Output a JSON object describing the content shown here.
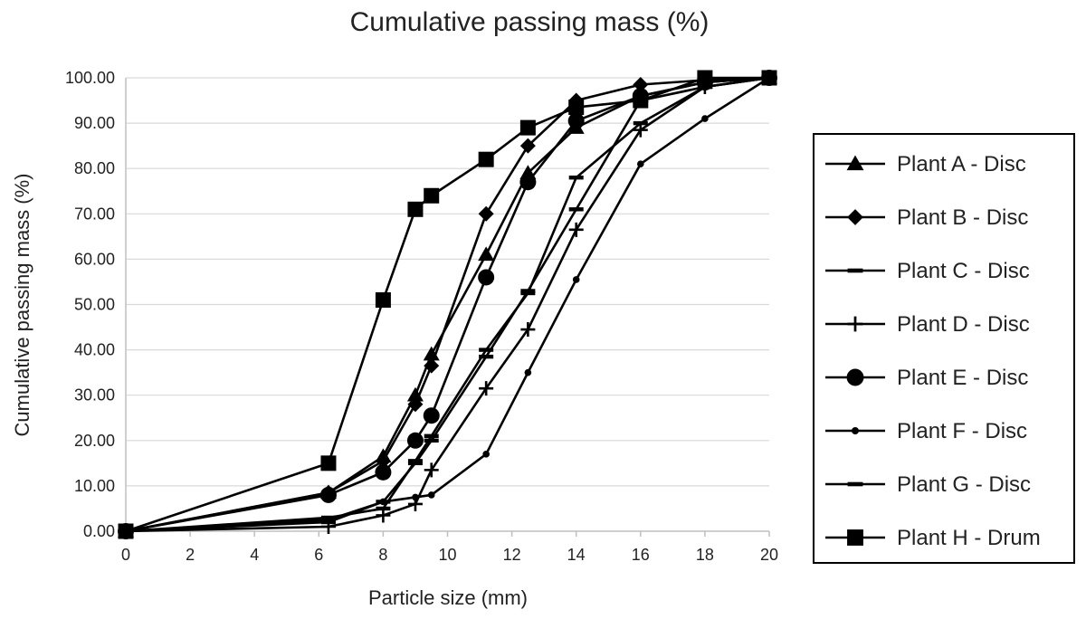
{
  "chart_data": {
    "type": "line",
    "title": "Cumulative passing mass (%)",
    "xlabel": "Particle size (mm)",
    "ylabel": "Cumulative passing mass (%)",
    "xlim": [
      0,
      20
    ],
    "ylim": [
      0,
      100
    ],
    "x_ticks": [
      "0",
      "2",
      "4",
      "6",
      "8",
      "10",
      "12",
      "14",
      "16",
      "18",
      "20"
    ],
    "y_ticks": [
      "0.00",
      "10.00",
      "20.00",
      "30.00",
      "40.00",
      "50.00",
      "60.00",
      "70.00",
      "80.00",
      "90.00",
      "100.00"
    ],
    "legend_position": "right",
    "series": [
      {
        "name": "Plant A - Disc",
        "marker": "triangle",
        "x": [
          0,
          6.3,
          8,
          9,
          9.5,
          11.2,
          12.5,
          14,
          16,
          18,
          20
        ],
        "y": [
          0,
          8.5,
          16.5,
          30,
          39,
          61,
          79,
          89,
          96,
          99,
          100
        ]
      },
      {
        "name": "Plant B - Disc",
        "marker": "diamond",
        "x": [
          0,
          6.3,
          8,
          9,
          9.5,
          11.2,
          12.5,
          14,
          16,
          18,
          20
        ],
        "y": [
          0,
          8.5,
          15.5,
          28,
          36.5,
          70,
          85,
          95,
          98.5,
          99.5,
          100
        ]
      },
      {
        "name": "Plant C - Disc",
        "marker": "dash",
        "x": [
          0,
          6.3,
          8,
          9,
          9.5,
          11.2,
          12.5,
          14,
          16,
          18,
          20
        ],
        "y": [
          0,
          3,
          5,
          15.5,
          21,
          40,
          52.5,
          78,
          90,
          98,
          100
        ]
      },
      {
        "name": "Plant D - Disc",
        "marker": "plus",
        "x": [
          0,
          6.3,
          8,
          9,
          9.5,
          11.2,
          12.5,
          14,
          16,
          18,
          20
        ],
        "y": [
          0,
          1,
          3.5,
          6,
          13.5,
          31.5,
          44.5,
          66.5,
          88.5,
          98,
          100
        ]
      },
      {
        "name": "Plant E - Disc",
        "marker": "circle",
        "x": [
          0,
          6.3,
          8,
          9,
          9.5,
          11.2,
          12.5,
          14,
          16,
          18,
          20
        ],
        "y": [
          0,
          8,
          13,
          20,
          25.5,
          56,
          77,
          90.5,
          96,
          99,
          100
        ]
      },
      {
        "name": "Plant F - Disc",
        "marker": "dot",
        "x": [
          0,
          6.3,
          8,
          9,
          9.5,
          11.2,
          12.5,
          14,
          16,
          18,
          20
        ],
        "y": [
          0,
          2.5,
          6.5,
          7.5,
          8,
          17,
          35,
          55.5,
          81,
          91,
          100
        ]
      },
      {
        "name": "Plant G - Disc",
        "marker": "dash",
        "x": [
          0,
          6.3,
          8,
          9,
          9.5,
          11.2,
          12.5,
          14,
          16,
          18,
          20
        ],
        "y": [
          0,
          2,
          6.5,
          15,
          20,
          38.5,
          53,
          71,
          95,
          98,
          100
        ]
      },
      {
        "name": "Plant H - Drum",
        "marker": "square",
        "x": [
          0,
          6.3,
          8,
          9,
          9.5,
          11.2,
          12.5,
          14,
          16,
          18,
          20
        ],
        "y": [
          0,
          15,
          51,
          71,
          74,
          82,
          89,
          93.5,
          95,
          100,
          100
        ]
      }
    ]
  }
}
